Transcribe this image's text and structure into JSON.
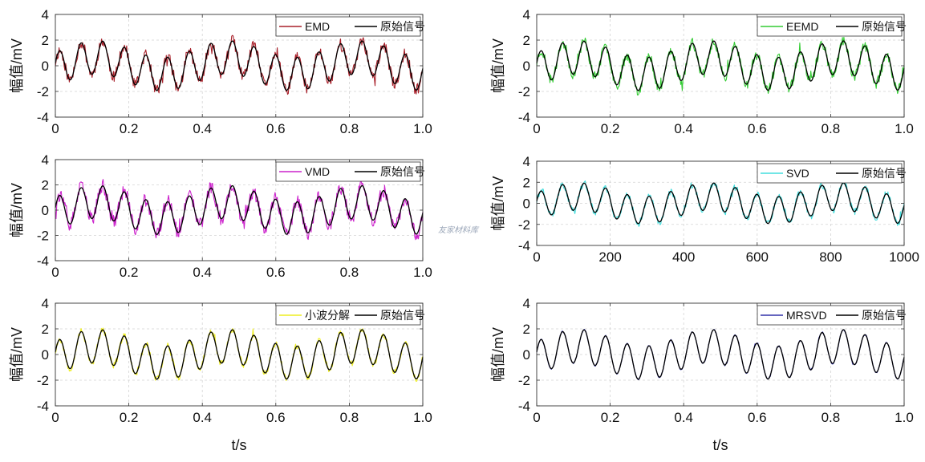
{
  "watermark": "友家材料库",
  "chart_data": [
    {
      "type": "line",
      "ylabel": "幅值/mV",
      "xlabel": "",
      "ylim": [
        -4,
        4
      ],
      "yticks": [
        -4,
        -2,
        0,
        2,
        4
      ],
      "xlim": [
        0,
        1
      ],
      "xticks": [
        0,
        0.2,
        0.4,
        0.6,
        0.8,
        1
      ],
      "xticklabels": [
        "0",
        "0.2",
        "0.4",
        "0.6",
        "0.8",
        "1.0"
      ],
      "grid": true,
      "legend": "top-right",
      "series": [
        {
          "name": "EMD",
          "color": "#a8202a",
          "noise": 0.45,
          "seed": 11
        },
        {
          "name": "原始信号",
          "color": "#000000",
          "noise": 0
        }
      ]
    },
    {
      "type": "line",
      "ylabel": "幅值/mV",
      "xlabel": "",
      "ylim": [
        -4,
        4
      ],
      "yticks": [
        -4,
        -2,
        0,
        2,
        4
      ],
      "xlim": [
        0,
        1
      ],
      "xticks": [
        0,
        0.2,
        0.4,
        0.6,
        0.8,
        1
      ],
      "xticklabels": [
        "0",
        "0.2",
        "0.4",
        "0.6",
        "0.8",
        "1.0"
      ],
      "grid": true,
      "legend": "top-right",
      "series": [
        {
          "name": "EEMD",
          "color": "#33cc33",
          "noise": 0.4,
          "seed": 23
        },
        {
          "name": "原始信号",
          "color": "#000000",
          "noise": 0
        }
      ]
    },
    {
      "type": "line",
      "ylabel": "幅值/mV",
      "xlabel": "",
      "ylim": [
        -4,
        4
      ],
      "yticks": [
        -4,
        -2,
        0,
        2,
        4
      ],
      "xlim": [
        0,
        1
      ],
      "xticks": [
        0,
        0.2,
        0.4,
        0.6,
        0.8,
        1
      ],
      "xticklabels": [
        "0",
        "0.2",
        "0.4",
        "0.6",
        "0.8",
        "1.0"
      ],
      "grid": true,
      "legend": "top-right",
      "series": [
        {
          "name": "VMD",
          "color": "#cc22cc",
          "noise": 0.55,
          "seed": 37
        },
        {
          "name": "原始信号",
          "color": "#000000",
          "noise": 0
        }
      ]
    },
    {
      "type": "line",
      "ylabel": "幅值/mV",
      "xlabel": "",
      "ylim": [
        -4,
        4
      ],
      "yticks": [
        -4,
        -2,
        0,
        2,
        4
      ],
      "xlim": [
        0,
        1000
      ],
      "xticks": [
        0,
        200,
        400,
        600,
        800,
        1000
      ],
      "xticklabels": [
        "0",
        "200",
        "400",
        "600",
        "800",
        "1000"
      ],
      "grid": true,
      "legend": "top-right",
      "series": [
        {
          "name": "SVD",
          "color": "#44dddd",
          "noise": 0.3,
          "seed": 41
        },
        {
          "name": "原始信号",
          "color": "#000000",
          "noise": 0
        }
      ]
    },
    {
      "type": "line",
      "ylabel": "幅值/mV",
      "xlabel": "t/s",
      "ylim": [
        -4,
        4
      ],
      "yticks": [
        -4,
        -2,
        0,
        2,
        4
      ],
      "xlim": [
        0,
        1
      ],
      "xticks": [
        0,
        0.2,
        0.4,
        0.6,
        0.8,
        1
      ],
      "xticklabels": [
        "0",
        "0.2",
        "0.4",
        "0.6",
        "0.8",
        "1.0"
      ],
      "grid": true,
      "legend": "top-right",
      "series": [
        {
          "name": "小波分解",
          "color": "#eeee22",
          "noise": 0.25,
          "seed": 53
        },
        {
          "name": "原始信号",
          "color": "#000000",
          "noise": 0
        }
      ]
    },
    {
      "type": "line",
      "ylabel": "幅值/mV",
      "xlabel": "t/s",
      "ylim": [
        -4,
        4
      ],
      "yticks": [
        -4,
        -2,
        0,
        2,
        4
      ],
      "xlim": [
        0,
        1
      ],
      "xticks": [
        0,
        0.2,
        0.4,
        0.6,
        0.8,
        1
      ],
      "xticklabels": [
        "0",
        "0.2",
        "0.4",
        "0.6",
        "0.8",
        "1.0"
      ],
      "grid": true,
      "legend": "top-right",
      "series": [
        {
          "name": "MRSVD",
          "color": "#3333aa",
          "noise": 0.06,
          "seed": 67
        },
        {
          "name": "原始信号",
          "color": "#000000",
          "noise": 0
        }
      ]
    }
  ]
}
